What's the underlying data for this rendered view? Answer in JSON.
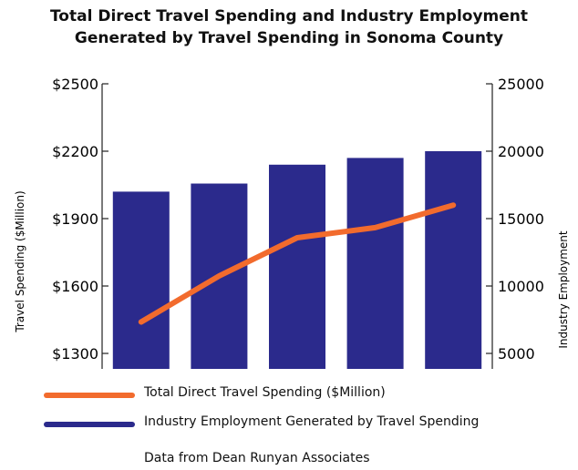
{
  "chart_data": {
    "type": "bar+line",
    "title": [
      "Total Direct Travel Spending and Industry Employment",
      "Generated by Travel Spending in Sonoma County"
    ],
    "ylabel_left": "Travel Spending ($Million)",
    "ylabel_right": "Industry Employment",
    "left_axis": {
      "ticks": [
        "$2500",
        "$2200",
        "$1900",
        "$1600",
        "$1300"
      ],
      "tick_values": [
        2500,
        2200,
        1900,
        1600,
        1300
      ],
      "ylim": [
        1300,
        2500
      ]
    },
    "right_axis": {
      "ticks": [
        "25000",
        "20000",
        "15000",
        "10000",
        "5000"
      ],
      "tick_values": [
        25000,
        20000,
        15000,
        10000,
        5000
      ],
      "ylim": [
        5000,
        25000
      ]
    },
    "x_labels": [],
    "series": [
      {
        "name": "Total Direct Travel Spending ($Million)",
        "type": "line",
        "axis": "left",
        "color": "#f26b2d",
        "values": [
          1440,
          1645,
          1815,
          1860,
          1960
        ]
      },
      {
        "name": "Industry Employment Generated by Travel Spending",
        "type": "bar",
        "axis": "right",
        "color": "#2b2a8c",
        "values": [
          17000,
          17600,
          19000,
          19500,
          20000
        ]
      }
    ],
    "grid": false,
    "legend_position": "bottom"
  },
  "source_note": "Data from Dean Runyan Associates"
}
